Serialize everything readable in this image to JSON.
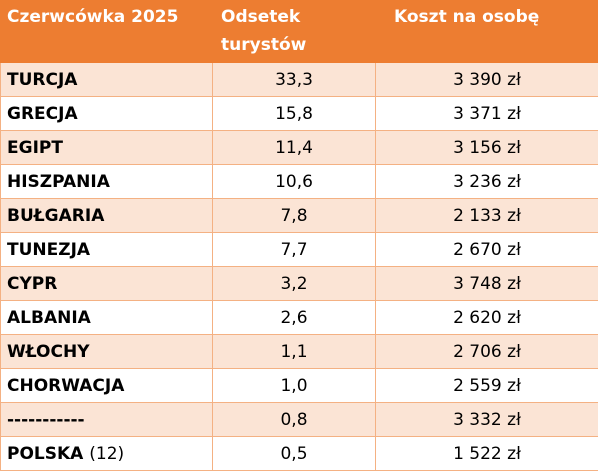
{
  "table": {
    "header": [
      "Czerwcówka 2025",
      "Odsetek turystów",
      "Koszt na osobę"
    ],
    "rows": [
      {
        "name": "TURCJA",
        "share": "33,3",
        "cost": "3 390 zł"
      },
      {
        "name": "GRECJA",
        "share": "15,8",
        "cost": "3 371 zł"
      },
      {
        "name": "EGIPT",
        "share": "11,4",
        "cost": "3 156 zł"
      },
      {
        "name": "HISZPANIA",
        "share": "10,6",
        "cost": "3 236 zł"
      },
      {
        "name": "BUŁGARIA",
        "share": "7,8",
        "cost": "2 133 zł"
      },
      {
        "name": "TUNEZJA",
        "share": "7,7",
        "cost": "2 670 zł"
      },
      {
        "name": "CYPR",
        "share": "3,2",
        "cost": "3 748 zł"
      },
      {
        "name": "ALBANIA",
        "share": "2,6",
        "cost": "2 620 zł"
      },
      {
        "name": "WŁOCHY",
        "share": "1,1",
        "cost": "2 706 zł"
      },
      {
        "name": "CHORWACJA",
        "share": "1,0",
        "cost": "2 559 zł"
      },
      {
        "name": "-----------",
        "share": "0,8",
        "cost": "3 332 zł"
      },
      {
        "name": "POLSKA",
        "note": "(12)",
        "share": "0,5",
        "cost": "1 522 zł"
      }
    ]
  }
}
